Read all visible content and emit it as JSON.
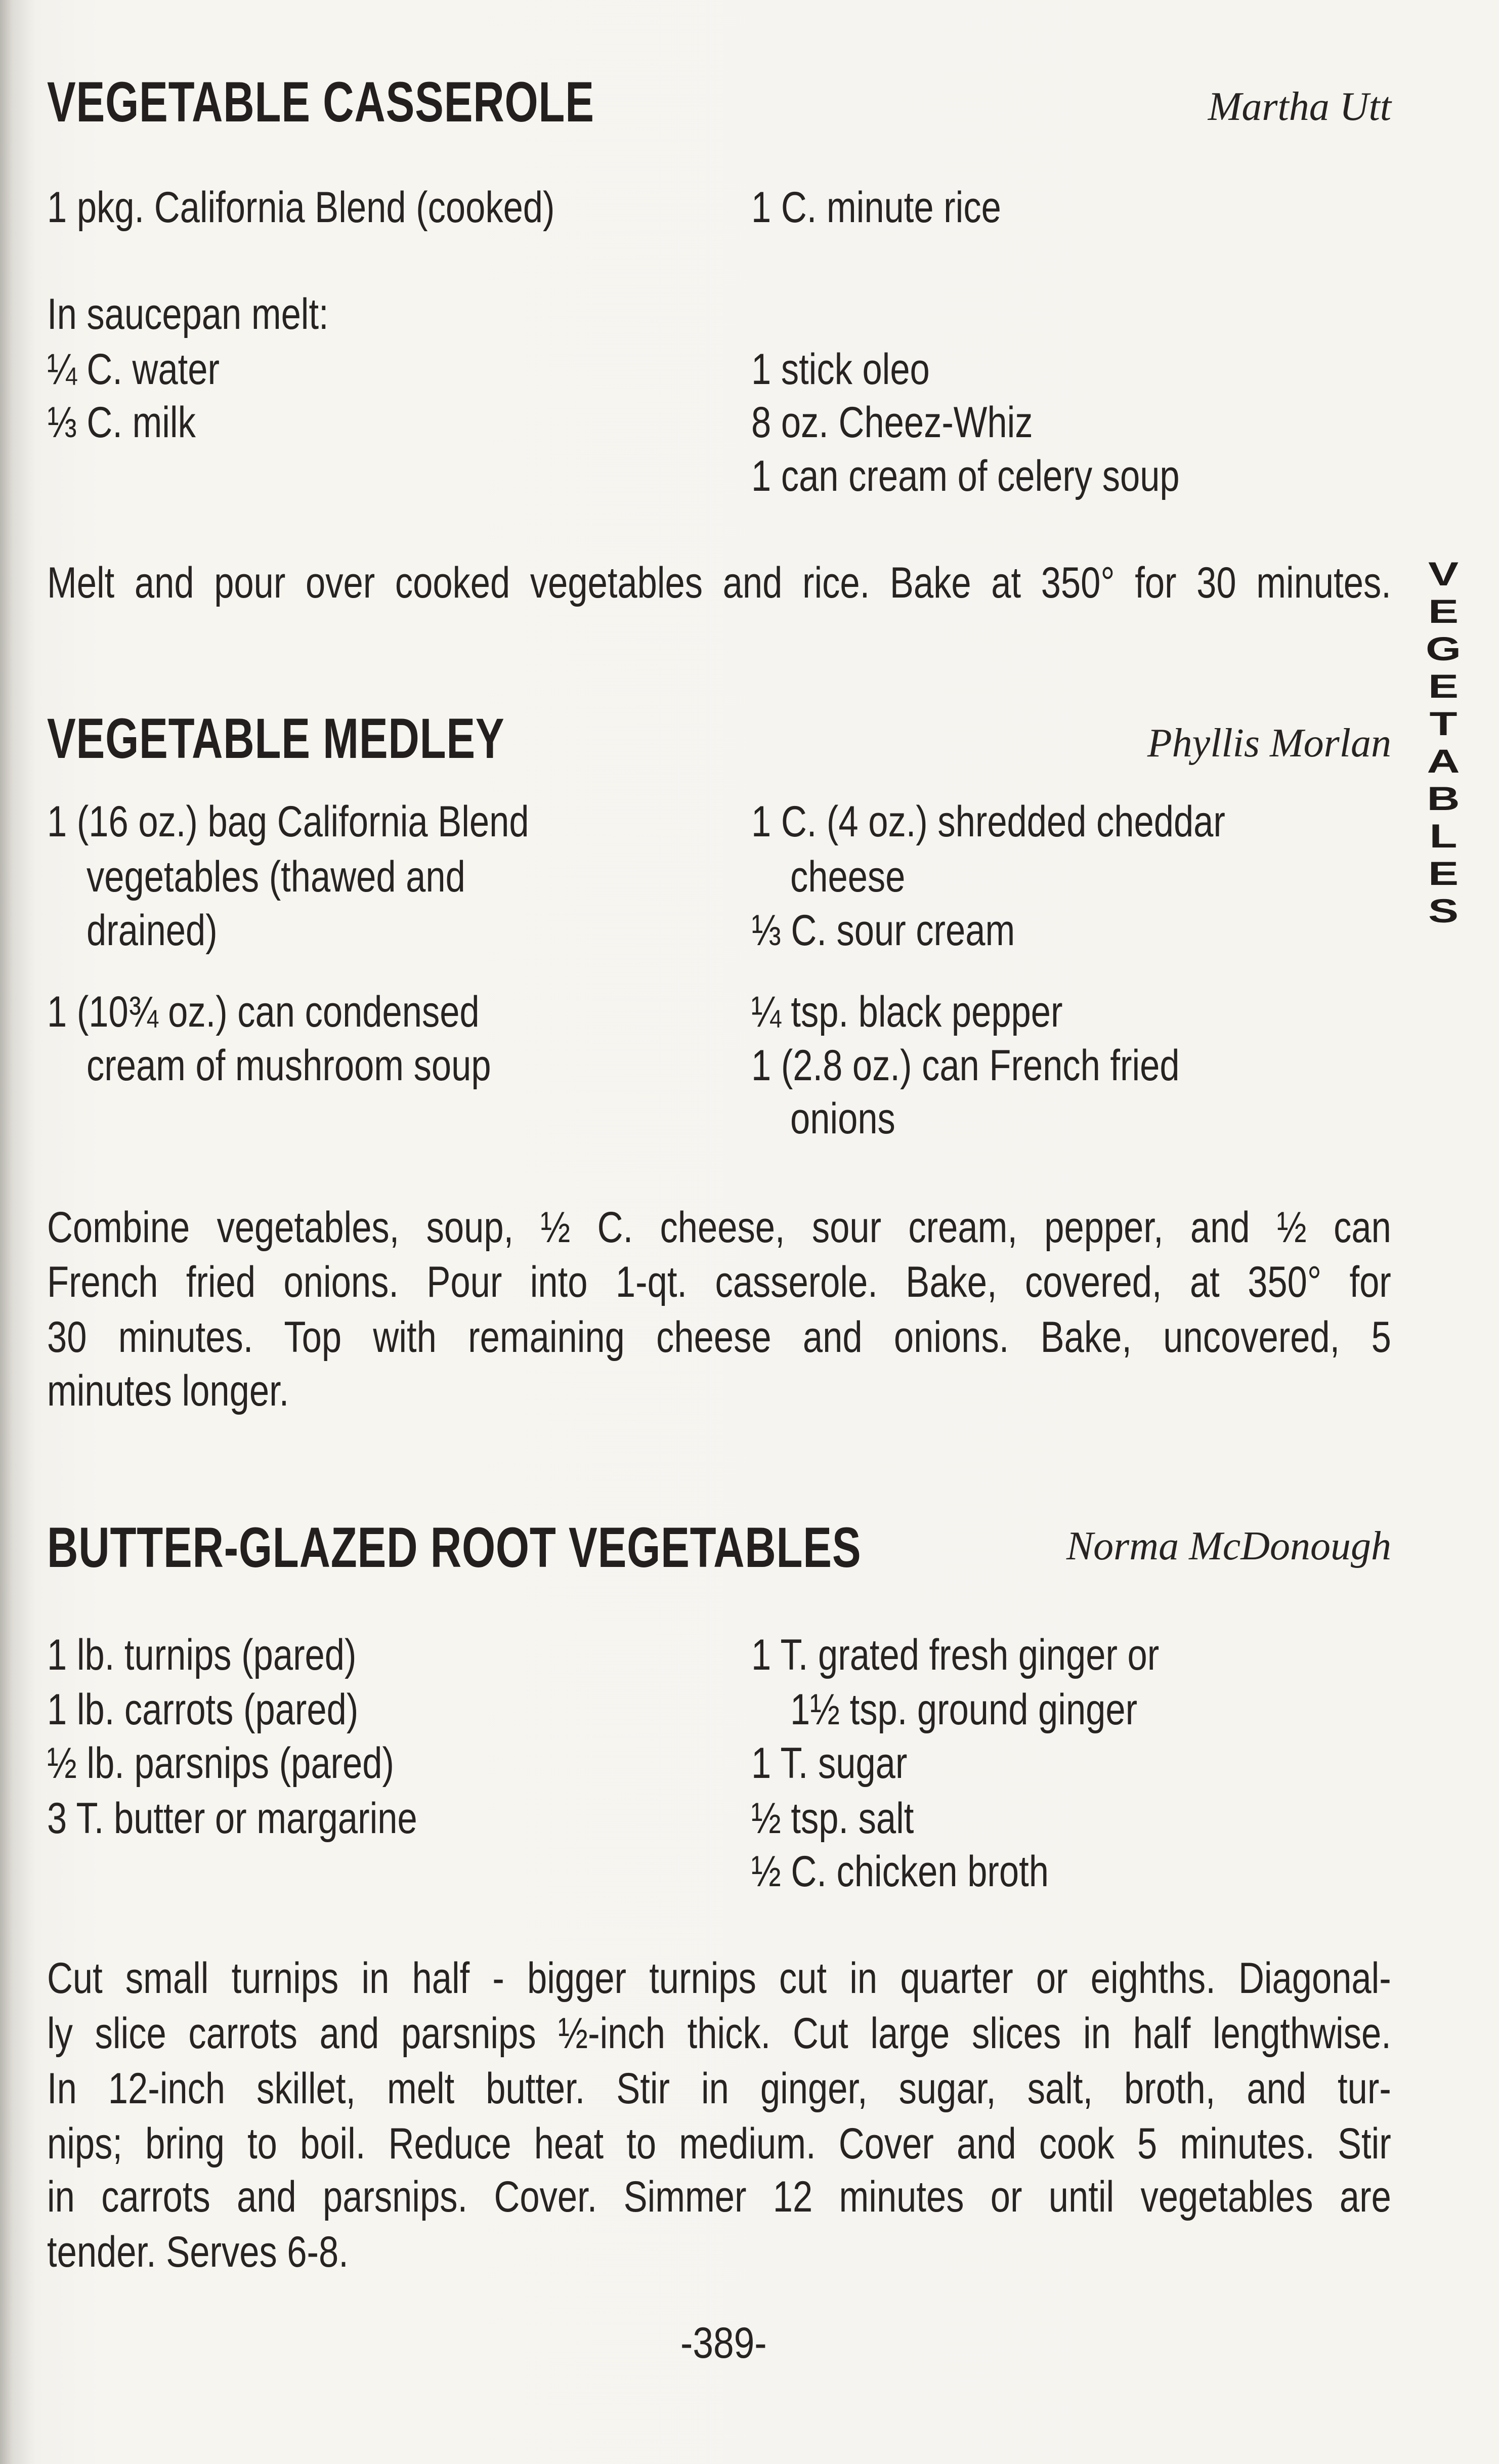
{
  "side_tab": {
    "label": "VEGETABLES",
    "letters": [
      "V",
      "E",
      "G",
      "E",
      "T",
      "A",
      "B",
      "L",
      "E",
      "S"
    ]
  },
  "page_number": "-389-",
  "recipes": [
    {
      "title": "VEGETABLE CASSEROLE",
      "author": "Martha Utt",
      "ingredients_left": [
        "1 pkg. California Blend (cooked)",
        "In saucepan melt:",
        "¼ C. water",
        "⅓ C. milk"
      ],
      "ingredients_right": [
        "1 C. minute rice",
        "1 stick oleo",
        "8 oz. Cheez-Whiz",
        "1 can cream of celery soup"
      ],
      "directions": [
        "Melt and pour over cooked vegetables and rice. Bake at 350° for 30 minutes."
      ]
    },
    {
      "title": "VEGETABLE MEDLEY",
      "author": "Phyllis Morlan",
      "ingredients_left": [
        "1 (16 oz.) bag California Blend",
        "vegetables (thawed and",
        "drained)",
        "1 (10¾ oz.) can condensed",
        "cream of mushroom soup"
      ],
      "ingredients_right": [
        "1 C. (4 oz.) shredded cheddar",
        "cheese",
        "⅓ C. sour cream",
        "¼ tsp. black pepper",
        "1 (2.8 oz.) can French fried",
        "onions"
      ],
      "directions": [
        "Combine vegetables, soup, ½ C. cheese, sour cream, pepper, and ½ can",
        "French fried onions. Pour into 1-qt. casserole. Bake, covered, at 350° for",
        "30 minutes. Top with remaining cheese and onions. Bake, uncovered, 5",
        "minutes longer."
      ]
    },
    {
      "title": "BUTTER-GLAZED ROOT VEGETABLES",
      "author": "Norma McDonough",
      "ingredients_left": [
        "1 lb. turnips (pared)",
        "1 lb. carrots (pared)",
        "½ lb. parsnips (pared)",
        "3 T. butter or margarine"
      ],
      "ingredients_right": [
        "1 T. grated fresh ginger or",
        "1½ tsp. ground ginger",
        "1 T. sugar",
        "½ tsp. salt",
        "½ C. chicken broth"
      ],
      "directions": [
        "Cut small turnips in half - bigger turnips cut in quarter or eighths. Diagonal-",
        "ly slice carrots and parsnips ½-inch thick. Cut large slices in half lengthwise.",
        "In 12-inch skillet, melt butter. Stir in ginger, sugar, salt, broth, and tur-",
        "nips; bring to boil. Reduce heat to medium. Cover and cook 5 minutes. Stir",
        "in carrots and parsnips. Cover. Simmer 12 minutes or until vegetables are",
        "tender. Serves 6-8."
      ]
    }
  ]
}
